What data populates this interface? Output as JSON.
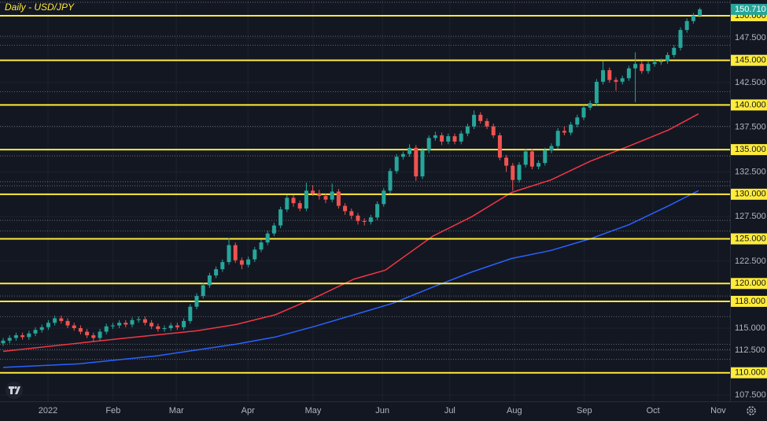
{
  "chart_data": {
    "type": "candlestick",
    "title": "Daily - USD/JPY",
    "x": [
      0,
      2,
      4,
      6,
      8,
      10,
      12,
      14,
      16,
      18,
      20,
      22,
      24,
      26,
      28,
      30,
      32,
      34,
      36,
      38,
      40,
      42,
      44,
      46,
      48,
      50,
      52,
      54,
      56,
      58,
      60,
      62,
      64,
      66,
      68,
      70,
      72,
      74,
      76,
      78,
      80,
      82,
      84,
      86,
      88,
      90,
      92,
      94,
      96,
      98,
      100,
      102,
      104,
      106,
      108,
      110,
      112,
      114,
      116,
      118,
      120,
      122,
      124,
      126,
      128,
      130,
      132,
      134,
      136,
      138,
      140,
      142,
      144,
      146,
      148,
      150,
      152,
      154,
      156,
      158,
      160,
      162,
      164,
      166,
      168,
      170,
      172,
      174,
      176,
      178,
      180,
      182,
      184,
      186,
      188,
      190,
      192,
      194,
      196,
      198,
      200,
      202,
      204,
      206,
      208,
      210,
      212,
      214,
      216
    ],
    "open": [
      113.3,
      113.6,
      113.9,
      114.2,
      114.0,
      114.4,
      114.8,
      115.1,
      115.6,
      116.1,
      115.8,
      115.3,
      115.0,
      114.6,
      114.2,
      113.9,
      114.6,
      115.2,
      115.3,
      115.6,
      115.4,
      115.9,
      116.0,
      115.6,
      115.2,
      114.9,
      115.0,
      115.3,
      115.1,
      115.8,
      117.4,
      118.6,
      119.8,
      120.9,
      121.6,
      122.4,
      124.3,
      122.6,
      122.1,
      122.7,
      123.8,
      124.6,
      125.6,
      126.5,
      128.3,
      129.6,
      129.0,
      128.4,
      130.4,
      130.1,
      129.8,
      129.4,
      130.3,
      128.7,
      128.1,
      127.6,
      127.0,
      126.9,
      127.4,
      128.9,
      130.4,
      132.6,
      134.2,
      134.5,
      135.2,
      132.0,
      134.9,
      136.3,
      136.6,
      135.9,
      136.5,
      135.9,
      136.8,
      137.6,
      138.9,
      138.2,
      137.6,
      136.6,
      134.1,
      133.2,
      131.6,
      133.3,
      134.8,
      133.1,
      133.5,
      134.9,
      135.4,
      137.1,
      136.9,
      137.8,
      138.6,
      139.7,
      140.2,
      142.6,
      143.9,
      142.8,
      142.6,
      143.0,
      144.1,
      144.6,
      143.8,
      144.6,
      144.8,
      144.9,
      145.6,
      146.4,
      148.4,
      149.4,
      150.0
    ],
    "high": [
      113.9,
      114.2,
      114.5,
      114.5,
      114.7,
      115.1,
      115.4,
      115.9,
      116.4,
      116.4,
      116.1,
      115.6,
      115.3,
      114.9,
      114.5,
      114.9,
      115.5,
      115.6,
      115.9,
      115.9,
      116.2,
      116.3,
      116.3,
      115.9,
      115.5,
      115.3,
      115.6,
      115.6,
      116.1,
      117.7,
      118.9,
      120.1,
      121.2,
      121.9,
      122.7,
      125.1,
      124.6,
      122.9,
      123.0,
      124.1,
      124.9,
      125.9,
      126.8,
      128.6,
      129.9,
      129.9,
      129.3,
      131.3,
      131.0,
      130.5,
      130.1,
      131.2,
      130.6,
      129.0,
      128.4,
      127.9,
      127.3,
      127.7,
      129.2,
      130.7,
      132.9,
      134.5,
      134.8,
      135.6,
      135.5,
      135.2,
      136.6,
      137.0,
      136.9,
      136.8,
      136.8,
      137.1,
      137.9,
      139.4,
      139.2,
      138.5,
      137.9,
      136.9,
      134.4,
      133.5,
      133.6,
      135.1,
      135.1,
      133.8,
      135.2,
      135.7,
      137.4,
      137.6,
      138.1,
      138.9,
      140.0,
      140.5,
      142.9,
      144.9,
      144.2,
      143.1,
      143.3,
      144.4,
      145.9,
      144.9,
      144.9,
      145.1,
      145.2,
      145.9,
      146.7,
      148.7,
      149.7,
      150.3,
      150.9
    ],
    "low": [
      113.0,
      113.3,
      113.6,
      113.7,
      113.7,
      114.1,
      114.5,
      114.8,
      115.3,
      115.5,
      115.0,
      114.7,
      114.3,
      113.9,
      113.5,
      113.6,
      114.3,
      114.9,
      115.0,
      115.1,
      115.1,
      115.6,
      115.3,
      114.9,
      114.6,
      114.6,
      114.7,
      114.8,
      114.8,
      115.5,
      117.1,
      118.3,
      119.5,
      120.6,
      121.3,
      122.1,
      122.3,
      121.6,
      121.8,
      122.4,
      123.5,
      124.3,
      125.3,
      126.2,
      128.0,
      128.6,
      128.1,
      128.1,
      129.8,
      129.4,
      129.0,
      129.1,
      128.4,
      127.7,
      127.2,
      126.6,
      126.5,
      126.6,
      127.1,
      128.6,
      130.1,
      132.3,
      133.9,
      134.2,
      131.5,
      131.7,
      134.6,
      136.0,
      135.5,
      135.6,
      135.6,
      135.6,
      136.5,
      137.3,
      137.9,
      137.3,
      136.3,
      133.8,
      132.5,
      130.4,
      131.3,
      133.0,
      132.8,
      132.8,
      133.2,
      134.6,
      135.1,
      136.6,
      136.6,
      137.5,
      138.3,
      139.4,
      139.9,
      142.3,
      142.5,
      141.6,
      142.3,
      142.7,
      140.3,
      143.5,
      143.5,
      144.3,
      144.5,
      144.6,
      145.3,
      146.1,
      148.1,
      149.1,
      149.8
    ],
    "close": [
      113.6,
      113.9,
      114.2,
      114.0,
      114.4,
      114.8,
      115.1,
      115.6,
      116.1,
      115.8,
      115.3,
      115.0,
      114.6,
      114.2,
      113.9,
      114.6,
      115.2,
      115.3,
      115.6,
      115.4,
      115.9,
      116.0,
      115.6,
      115.2,
      114.9,
      115.0,
      115.3,
      115.1,
      115.8,
      117.4,
      118.6,
      119.8,
      120.9,
      121.6,
      122.4,
      124.3,
      122.6,
      122.1,
      122.7,
      123.8,
      124.6,
      125.6,
      126.5,
      128.3,
      129.6,
      129.0,
      128.4,
      130.4,
      130.1,
      129.8,
      129.4,
      130.3,
      128.7,
      128.1,
      127.6,
      127.0,
      126.9,
      127.4,
      128.9,
      130.4,
      132.6,
      134.2,
      134.5,
      135.2,
      132.0,
      134.9,
      136.3,
      136.6,
      135.9,
      136.5,
      135.9,
      136.8,
      137.6,
      138.9,
      138.2,
      137.6,
      136.6,
      134.1,
      133.2,
      131.6,
      133.3,
      134.8,
      133.1,
      133.5,
      134.9,
      135.4,
      137.1,
      136.9,
      137.8,
      138.6,
      139.7,
      140.2,
      142.6,
      143.9,
      142.8,
      142.6,
      143.0,
      144.1,
      144.6,
      143.8,
      144.6,
      144.8,
      144.9,
      145.6,
      146.4,
      148.4,
      149.4,
      150.0,
      150.71
    ],
    "up_color": "#26a69a",
    "down_color": "#ef5350",
    "lines": [
      {
        "color": "#f23645",
        "x": [
          0,
          35.6,
          60,
          72.2,
          84.4,
          96.6,
          108.8,
          118.5,
          133.2,
          145.4,
          157.6,
          169.8,
          182,
          194.1,
          206.3,
          215.6
        ],
        "values": [
          112.4,
          113.8,
          114.7,
          115.4,
          116.5,
          118.4,
          120.5,
          121.5,
          125.3,
          127.5,
          130.2,
          131.6,
          133.7,
          135.4,
          137.2,
          139.0
        ]
      },
      {
        "color": "#2962ff",
        "x": [
          0,
          23.4,
          47.8,
          72.2,
          84.4,
          96.6,
          108.8,
          121,
          133.2,
          145.4,
          157.6,
          169.8,
          182,
          194.1,
          206.3,
          215.6
        ],
        "values": [
          110.6,
          111.0,
          111.9,
          113.2,
          114.0,
          115.2,
          116.5,
          117.8,
          119.6,
          121.3,
          122.8,
          123.7,
          125.0,
          126.6,
          128.7,
          130.4
        ]
      }
    ],
    "levels": [
      {
        "value": 150,
        "label": "150.000"
      },
      {
        "value": 145,
        "label": "145.000"
      },
      {
        "value": 140,
        "label": "140.000"
      },
      {
        "value": 135,
        "label": "135.000"
      },
      {
        "value": 130,
        "label": "130.000"
      },
      {
        "value": 125,
        "label": "125.000"
      },
      {
        "value": 120,
        "label": "120.000"
      },
      {
        "value": 118,
        "label": "118.000"
      },
      {
        "value": 110,
        "label": "110.000"
      }
    ],
    "level_color": "#ffeb3b",
    "dotted_levels": [
      151.5,
      147.7,
      146.7,
      141.5,
      137.6,
      134.3,
      131.4,
      130.95,
      127.07,
      125.9,
      118.6,
      116.3,
      113.2,
      112.6,
      111.5
    ],
    "last_price": {
      "value": 150.71,
      "label": "150.710"
    },
    "last_price_color": "#26a69a",
    "xlim": [
      -0.98,
      225.37
    ],
    "xticks": [
      {
        "value": 13.9,
        "label": "2022"
      },
      {
        "value": 34.1,
        "label": "Feb"
      },
      {
        "value": 53.7,
        "label": "Mar"
      },
      {
        "value": 75.9,
        "label": "Apr"
      },
      {
        "value": 96.1,
        "label": "May"
      },
      {
        "value": 117.6,
        "label": "Jun"
      },
      {
        "value": 138.5,
        "label": "Jul"
      },
      {
        "value": 158.5,
        "label": "Aug"
      },
      {
        "value": 180.2,
        "label": "Sep"
      },
      {
        "value": 201.5,
        "label": "Oct"
      },
      {
        "value": 221.7,
        "label": "Nov"
      }
    ],
    "ylim": [
      106.8,
      151.76
    ],
    "yticks": [
      {
        "value": 107.5,
        "label": "107.500"
      },
      {
        "value": 112.5,
        "label": "112.500"
      },
      {
        "value": 115,
        "label": "115.000"
      },
      {
        "value": 122.5,
        "label": "122.500"
      },
      {
        "value": 127.5,
        "label": "127.500"
      },
      {
        "value": 132.5,
        "label": "132.500"
      },
      {
        "value": 137.5,
        "label": "137.500"
      },
      {
        "value": 142.5,
        "label": "142.500"
      },
      {
        "value": 147.5,
        "label": "147.500"
      }
    ],
    "grid": true
  }
}
